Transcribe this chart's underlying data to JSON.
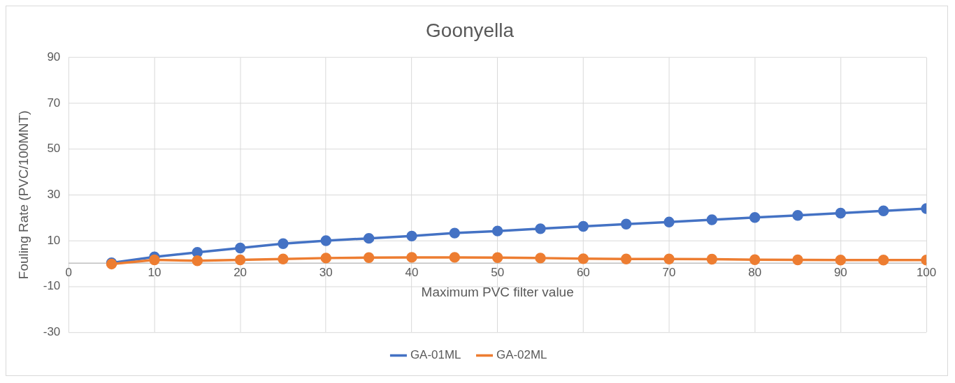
{
  "chart_data": {
    "type": "line",
    "title": "Goonyella",
    "xlabel": "Maximum PVC filter value",
    "ylabel": "Fouling Rate (PVC/100MNT)",
    "x": [
      5,
      10,
      15,
      20,
      25,
      30,
      35,
      40,
      45,
      50,
      55,
      60,
      65,
      70,
      75,
      80,
      85,
      90,
      95,
      100
    ],
    "series": [
      {
        "name": "GA-01ML",
        "color": "#4472c4",
        "values": [
          0.3,
          2.9,
          4.9,
          6.8,
          8.7,
          10,
          11,
          12,
          13.3,
          14.2,
          15.2,
          16.2,
          17.2,
          18.1,
          19.1,
          20.1,
          21,
          22,
          23,
          24
        ]
      },
      {
        "name": "GA-02ML",
        "color": "#ed7d31",
        "values": [
          -0.2,
          1.6,
          1.2,
          1.6,
          2,
          2.4,
          2.6,
          2.7,
          2.7,
          2.6,
          2.4,
          2.1,
          2,
          2,
          1.9,
          1.7,
          1.6,
          1.5,
          1.5,
          1.5
        ]
      }
    ],
    "xlim": [
      0,
      100
    ],
    "xticks": [
      0,
      10,
      20,
      30,
      40,
      50,
      60,
      70,
      80,
      90,
      100
    ],
    "ylim": [
      -30,
      90
    ],
    "yticks": [
      -30,
      -10,
      10,
      30,
      50,
      70,
      90
    ],
    "grid": true,
    "legend": "bottom",
    "marker": "circle",
    "line_style": "solid"
  }
}
